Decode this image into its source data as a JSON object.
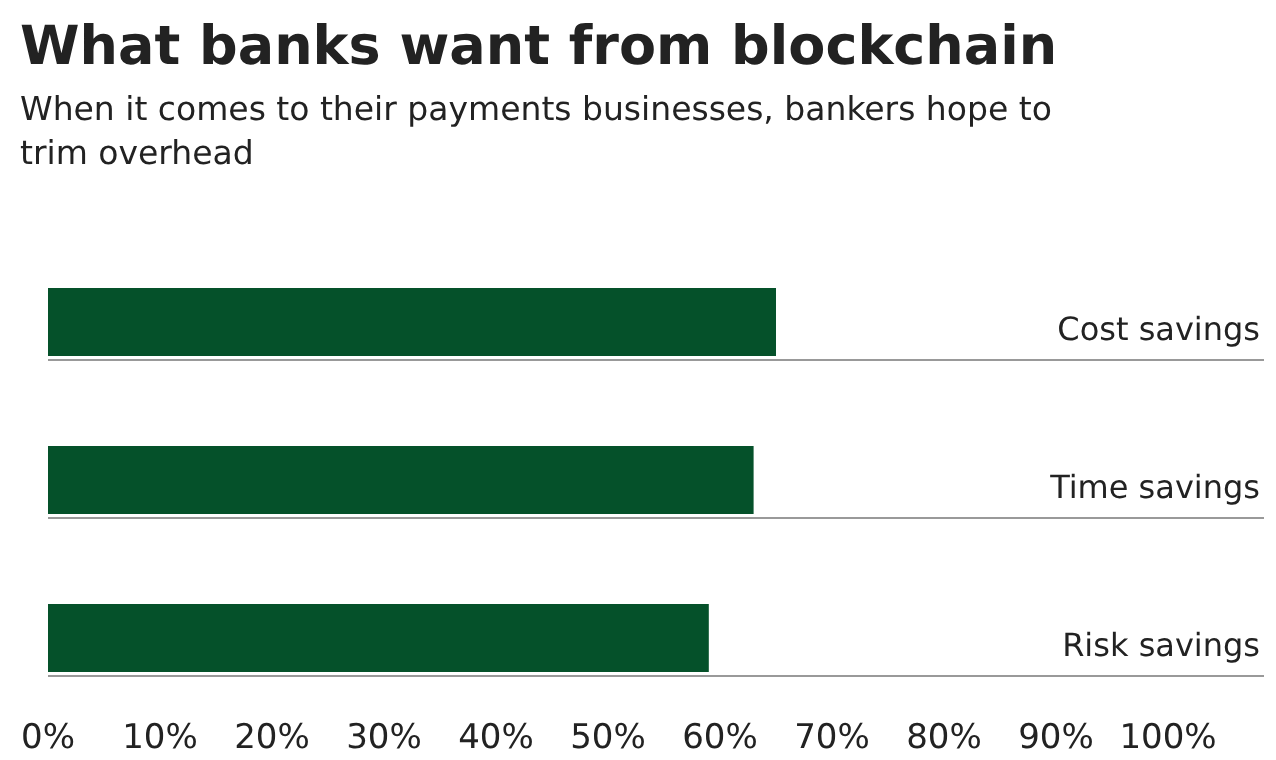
{
  "chart_data": {
    "type": "bar",
    "orientation": "horizontal",
    "title": "What banks want from blockchain",
    "subtitle": "When it comes to their payments businesses, bankers hope to trim overhead",
    "categories": [
      "Cost savings",
      "Time savings",
      "Risk savings"
    ],
    "values": [
      65,
      63,
      59
    ],
    "color": "#05512a",
    "xlim": [
      0,
      100
    ],
    "xticks": [
      {
        "value": 0,
        "label": "0%"
      },
      {
        "value": 10,
        "label": "10%"
      },
      {
        "value": 20,
        "label": "20%"
      },
      {
        "value": 30,
        "label": "30%"
      },
      {
        "value": 40,
        "label": "40%"
      },
      {
        "value": 50,
        "label": "50%"
      },
      {
        "value": 60,
        "label": "60%"
      },
      {
        "value": 70,
        "label": "70%"
      },
      {
        "value": 80,
        "label": "80%"
      },
      {
        "value": 90,
        "label": "90%"
      },
      {
        "value": 100,
        "label": "100%"
      }
    ],
    "grid": false
  }
}
